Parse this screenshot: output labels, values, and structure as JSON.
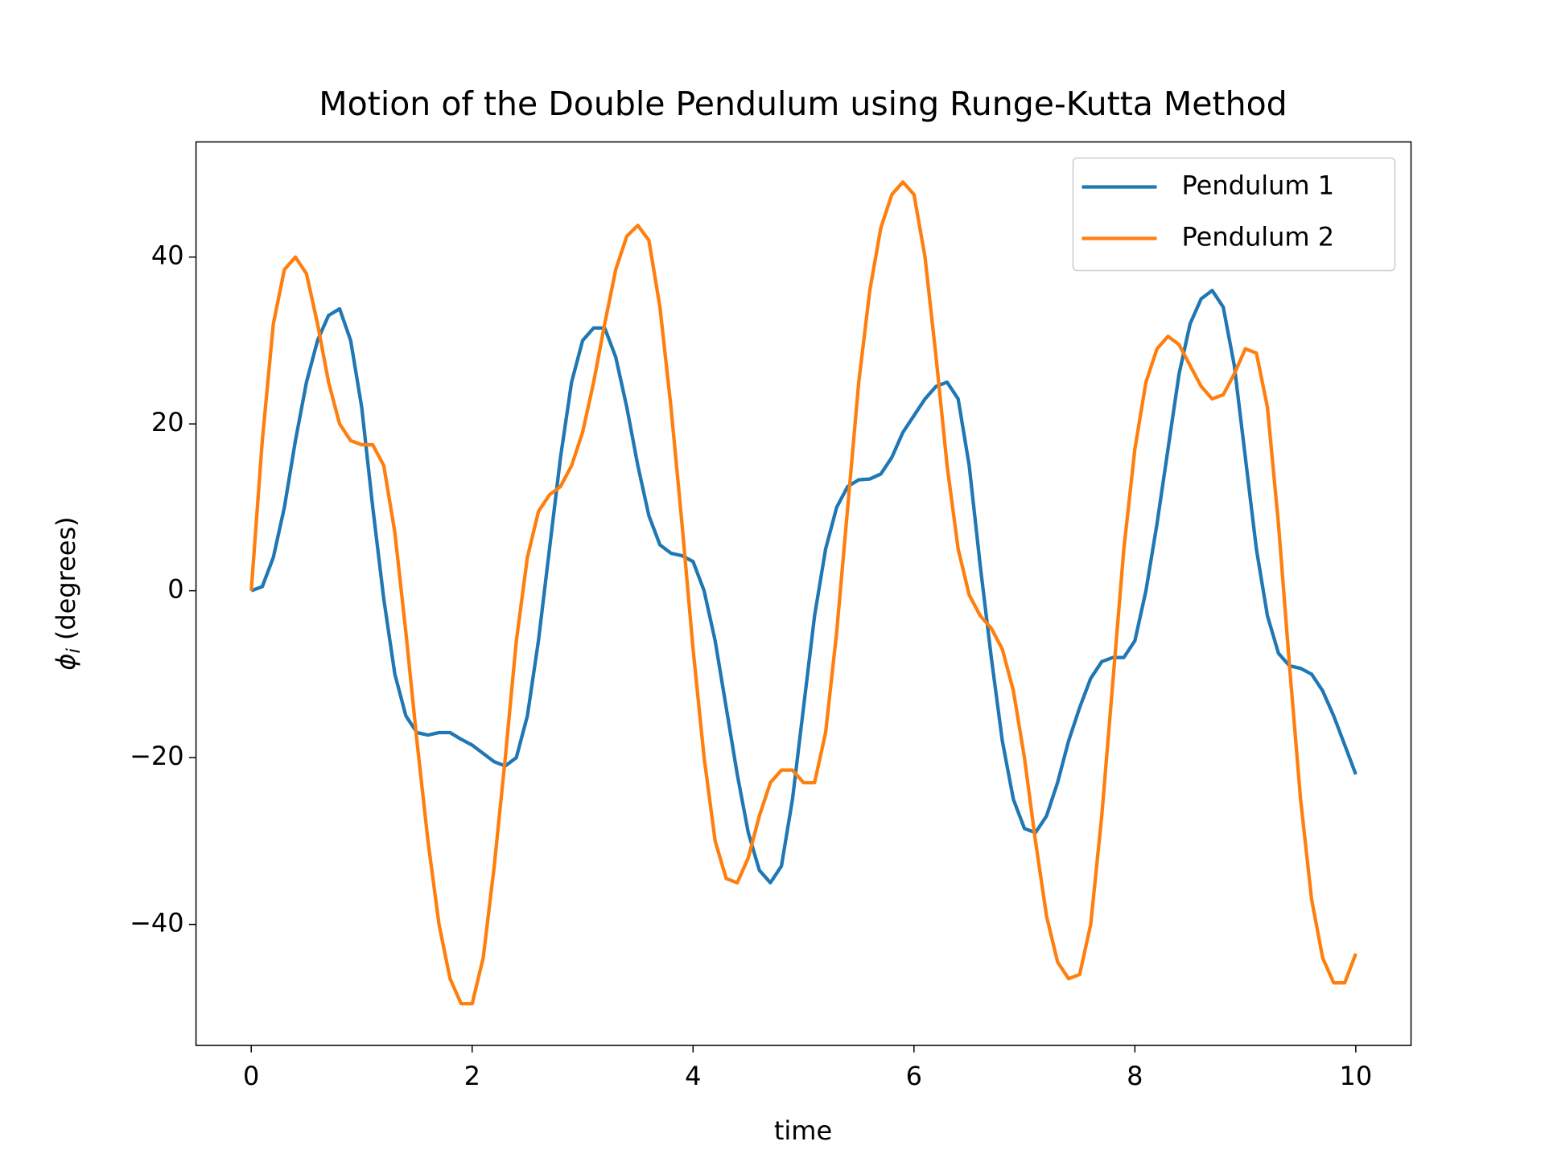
{
  "chart_data": {
    "type": "line",
    "title": "Motion of the Double Pendulum using Runge-Kutta Method",
    "xlabel": "time",
    "ylabel_symbol": "ϕ",
    "ylabel_subscript": "i",
    "ylabel": "(degrees)",
    "x": [
      0,
      0.1,
      0.2,
      0.3,
      0.4,
      0.5,
      0.6,
      0.7,
      0.8,
      0.9,
      1,
      1.1,
      1.2,
      1.3,
      1.4,
      1.5,
      1.6,
      1.7,
      1.8,
      1.9,
      2,
      2.1,
      2.2,
      2.3,
      2.4,
      2.5,
      2.6,
      2.7,
      2.8,
      2.9,
      3,
      3.1,
      3.2,
      3.3,
      3.4,
      3.5,
      3.6,
      3.7,
      3.8,
      3.9,
      4,
      4.1,
      4.2,
      4.3,
      4.4,
      4.5,
      4.6,
      4.7,
      4.8,
      4.9,
      5,
      5.1,
      5.2,
      5.3,
      5.4,
      5.5,
      5.6,
      5.7,
      5.8,
      5.9,
      6,
      6.1,
      6.2,
      6.3,
      6.4,
      6.5,
      6.6,
      6.7,
      6.8,
      6.9,
      7,
      7.1,
      7.2,
      7.3,
      7.4,
      7.5,
      7.6,
      7.7,
      7.8,
      7.9,
      8,
      8.1,
      8.2,
      8.3,
      8.4,
      8.5,
      8.6,
      8.7,
      8.8,
      8.9,
      9,
      9.1,
      9.2,
      9.3,
      9.4,
      9.5,
      9.6,
      9.7,
      9.8,
      9.9,
      10
    ],
    "series": [
      {
        "name": "Pendulum 1",
        "color": "#1f77b4",
        "values": [
          0,
          0.5,
          4,
          10,
          18,
          25,
          30,
          33,
          33.8,
          30,
          22,
          10,
          -1,
          -10,
          -15,
          -17,
          -17.3,
          -17,
          -17,
          -17.8,
          -18.5,
          -19.5,
          -20.5,
          -21,
          -20,
          -15,
          -6,
          5,
          16,
          25,
          30,
          31.5,
          31.5,
          28,
          22,
          15,
          9,
          5.5,
          4.5,
          4.2,
          3.5,
          0,
          -6,
          -14,
          -22,
          -29,
          -33.5,
          -35,
          -33,
          -25,
          -14,
          -3,
          5,
          10,
          12.5,
          13.3,
          13.4,
          14,
          16,
          19,
          21,
          23,
          24.5,
          25,
          23,
          15,
          3,
          -8,
          -18,
          -25,
          -28.5,
          -29,
          -27,
          -23,
          -18,
          -14,
          -10.5,
          -8.5,
          -8,
          -8,
          -6,
          0,
          8,
          17,
          26,
          32,
          35,
          36,
          34,
          27,
          16,
          5,
          -3,
          -7.5,
          -9,
          -9.3,
          -10,
          -12,
          -15,
          -18.5,
          -22
        ]
      },
      {
        "name": "Pendulum 2",
        "color": "#ff7f0e",
        "values": [
          0,
          18,
          32,
          38.5,
          40,
          38,
          32,
          25,
          20,
          18,
          17.5,
          17.5,
          15,
          7,
          -5,
          -18,
          -30,
          -40,
          -46.5,
          -49.5,
          -49.5,
          -44,
          -33,
          -20,
          -6,
          4,
          9.5,
          11.5,
          12.5,
          15,
          19,
          25,
          32,
          38.5,
          42.5,
          43.8,
          42,
          34,
          22,
          8,
          -7,
          -20,
          -30,
          -34.5,
          -35,
          -32,
          -27,
          -23,
          -21.5,
          -21.5,
          -23,
          -23,
          -17,
          -5,
          10,
          25,
          36,
          43.5,
          47.5,
          49,
          47.5,
          40,
          28,
          15,
          5,
          -0.5,
          -3,
          -4.5,
          -7,
          -12,
          -20,
          -30,
          -39,
          -44.5,
          -46.5,
          -46,
          -40,
          -27,
          -11,
          5,
          17,
          25,
          29,
          30.5,
          29.5,
          27,
          24.5,
          23,
          23.5,
          26,
          29,
          28.5,
          22,
          8,
          -9,
          -25,
          -37,
          -44,
          -47,
          -47,
          -43.5
        ]
      }
    ],
    "xlim": [
      -0.5,
      10.5
    ],
    "ylim": [
      -54.5,
      53.8
    ],
    "xticks": [
      0,
      2,
      4,
      6,
      8,
      10
    ],
    "yticks": [
      {
        "value": -40,
        "label": "−40"
      },
      {
        "value": -20,
        "label": "−20"
      },
      0,
      20,
      40
    ],
    "grid": false,
    "legend": "upper right"
  }
}
